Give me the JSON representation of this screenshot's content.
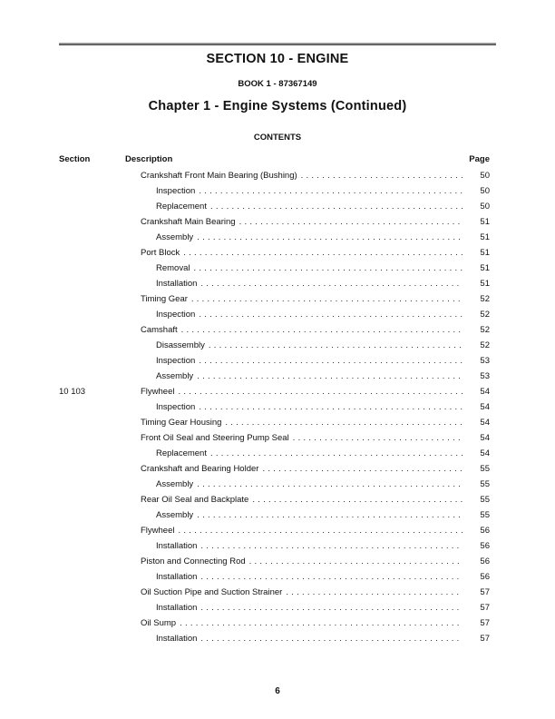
{
  "header": {
    "section_title": "SECTION 10 - ENGINE",
    "book_line": "BOOK 1 - 87367149",
    "chapter_title": "Chapter 1 - Engine Systems (Continued)",
    "contents_label": "CONTENTS"
  },
  "toc": {
    "headers": {
      "section": "Section",
      "description": "Description",
      "page": "Page"
    },
    "leader_dot": ". ",
    "entries": [
      {
        "section": "",
        "description": "Crankshaft Front Main Bearing (Bushing)",
        "page": "50",
        "level": 1
      },
      {
        "section": "",
        "description": "Inspection",
        "page": "50",
        "level": 2
      },
      {
        "section": "",
        "description": "Replacement",
        "page": "50",
        "level": 2
      },
      {
        "section": "",
        "description": "Crankshaft Main Bearing",
        "page": "51",
        "level": 1
      },
      {
        "section": "",
        "description": "Assembly",
        "page": "51",
        "level": 2
      },
      {
        "section": "",
        "description": "Port Block",
        "page": "51",
        "level": 1
      },
      {
        "section": "",
        "description": "Removal",
        "page": "51",
        "level": 2
      },
      {
        "section": "",
        "description": "Installation",
        "page": "51",
        "level": 2
      },
      {
        "section": "",
        "description": "Timing Gear",
        "page": "52",
        "level": 1
      },
      {
        "section": "",
        "description": "Inspection",
        "page": "52",
        "level": 2
      },
      {
        "section": "",
        "description": "Camshaft",
        "page": "52",
        "level": 1
      },
      {
        "section": "",
        "description": "Disassembly",
        "page": "52",
        "level": 2
      },
      {
        "section": "",
        "description": "Inspection",
        "page": "53",
        "level": 2
      },
      {
        "section": "",
        "description": "Assembly",
        "page": "53",
        "level": 2
      },
      {
        "section": "10 103",
        "description": "Flywheel",
        "page": "54",
        "level": 1
      },
      {
        "section": "",
        "description": "Inspection",
        "page": "54",
        "level": 2
      },
      {
        "section": "",
        "description": "Timing Gear Housing",
        "page": "54",
        "level": 1
      },
      {
        "section": "",
        "description": "Front Oil Seal and Steering Pump Seal",
        "page": "54",
        "level": 1
      },
      {
        "section": "",
        "description": "Replacement",
        "page": "54",
        "level": 2
      },
      {
        "section": "",
        "description": "Crankshaft and Bearing Holder",
        "page": "55",
        "level": 1
      },
      {
        "section": "",
        "description": "Assembly",
        "page": "55",
        "level": 2
      },
      {
        "section": "",
        "description": "Rear Oil Seal and Backplate",
        "page": "55",
        "level": 1
      },
      {
        "section": "",
        "description": "Assembly",
        "page": "55",
        "level": 2
      },
      {
        "section": "",
        "description": "Flywheel",
        "page": "56",
        "level": 1
      },
      {
        "section": "",
        "description": "Installation",
        "page": "56",
        "level": 2
      },
      {
        "section": "",
        "description": "Piston and Connecting Rod",
        "page": "56",
        "level": 1
      },
      {
        "section": "",
        "description": "Installation",
        "page": "56",
        "level": 2
      },
      {
        "section": "",
        "description": "Oil Suction Pipe and Suction Strainer",
        "page": "57",
        "level": 1
      },
      {
        "section": "",
        "description": "Installation",
        "page": "57",
        "level": 2
      },
      {
        "section": "",
        "description": "Oil Sump",
        "page": "57",
        "level": 1
      },
      {
        "section": "",
        "description": "Installation",
        "page": "57",
        "level": 2
      }
    ]
  },
  "footer": {
    "page_number": "6"
  }
}
